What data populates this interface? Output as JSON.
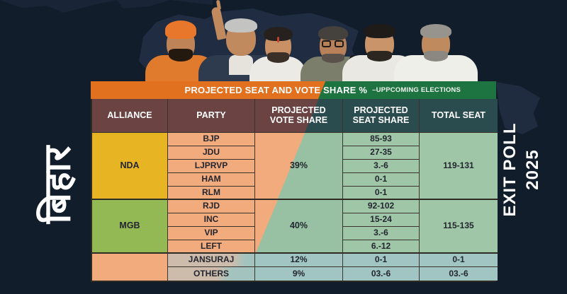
{
  "side_labels": {
    "left": "बिहार",
    "right": "EXIT POLL 2025"
  },
  "banner": {
    "title": "PROJECTED SEAT AND VOTE SHARE %",
    "subtitle": "–UPPCOMING ELECTIONS"
  },
  "chart_data": {
    "type": "table",
    "title": "PROJECTED SEAT AND VOTE SHARE %",
    "subtitle": "–UPPCOMING ELECTIONS",
    "columns": [
      "ALLIANCE",
      "PARTY",
      "PROJECTED VOTE SHARE",
      "PROJECTED SEAT SHARE",
      "TOTAL SEAT"
    ],
    "groups": [
      {
        "alliance": "NDA",
        "vote_share": "39%",
        "total_seat": "119-131",
        "rows": [
          {
            "party": "BJP",
            "seat_share": "85-93"
          },
          {
            "party": "JDU",
            "seat_share": "27-35"
          },
          {
            "party": "LJPRVP",
            "seat_share": "3.-6"
          },
          {
            "party": "HAM",
            "seat_share": "0-1"
          },
          {
            "party": "RLM",
            "seat_share": "0-1"
          }
        ]
      },
      {
        "alliance": "MGB",
        "vote_share": "40%",
        "total_seat": "115-135",
        "rows": [
          {
            "party": "RJD",
            "seat_share": "92-102"
          },
          {
            "party": "INC",
            "seat_share": "15-24"
          },
          {
            "party": "VIP",
            "seat_share": "3.-6"
          },
          {
            "party": "LEFT",
            "seat_share": "6.-12"
          }
        ]
      },
      {
        "alliance": "",
        "rows": [
          {
            "party": "JANSURAJ",
            "vote_share": "12%",
            "seat_share": "0-1",
            "total_seat": "0-1"
          },
          {
            "party": "OTHERS",
            "vote_share": "9%",
            "seat_share": "03.-6",
            "total_seat": "03.-6"
          }
        ]
      }
    ]
  },
  "colors": {
    "background": "#121D2C",
    "banner_orange": "#E2711F",
    "banner_green": "#1E7440",
    "header_maroon": "#6B4343",
    "header_teal": "#2B4C4F",
    "nda_gold": "#E7B524",
    "mgb_green": "#93B955",
    "party_salmon": "#F2AB7C",
    "seat_sage": "#9EC6A7",
    "bottom_blue": "#A0C5C2",
    "bottom_tan": "#CDBCAB"
  }
}
